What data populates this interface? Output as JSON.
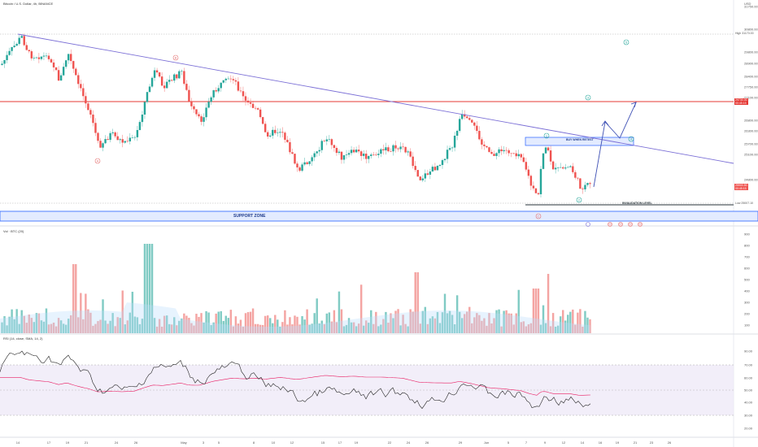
{
  "header": {
    "symbol_title": "Bitcoin / U.S. Dollar, 4h, BINANCE",
    "currency": "USD"
  },
  "price_axis": {
    "ticks": [
      "31750.00",
      "30800.00",
      "29800.00",
      "28900.00",
      "28400.00",
      "27750.00",
      "27100.00",
      "26800.00",
      "26300.00",
      "25700.00",
      "25100.00",
      "24800.00"
    ],
    "high_label": "High",
    "high_value": "31170.00",
    "low_label": "Low",
    "low_value": "25007.10",
    "current_price": "25900.50",
    "current_time": "00:45:15",
    "red_level_value": "29730.00",
    "red_level_countdown": "00:45:15"
  },
  "annotations": {
    "support_zone": "SUPPORT ZONE",
    "buy_when_retest": "BUY WHEN RETEST",
    "invalidation_level": "INVALIDATION LEVEL",
    "wave_labels": [
      {
        "id": "B",
        "text": "B",
        "color": "#e57373"
      },
      {
        "id": "A",
        "text": "A",
        "color": "#e57373"
      },
      {
        "id": "C",
        "text": "C",
        "color": "#e57373"
      },
      {
        "id": "1",
        "text": "1",
        "color": "#26a69a"
      },
      {
        "id": "2",
        "text": "2",
        "color": "#26a69a"
      },
      {
        "id": "3",
        "text": "3",
        "color": "#26a69a"
      },
      {
        "id": "4",
        "text": "4",
        "color": "#26a69a"
      },
      {
        "id": "5",
        "text": "5",
        "color": "#26a69a"
      }
    ]
  },
  "volume_panel": {
    "title": "Vol · BTC (20)",
    "ticks": [
      "900",
      "800",
      "700",
      "600",
      "500",
      "400",
      "300",
      "200",
      "100"
    ]
  },
  "rsi_panel": {
    "title": "RSI (14, close, SMA, 14, 2)",
    "ticks": [
      "90.00",
      "70.00",
      "60.00",
      "50.00",
      "40.00",
      "30.00",
      "20.00"
    ]
  },
  "time_axis": {
    "labels": [
      "14",
      "17",
      "19",
      "21",
      "24",
      "26",
      "May",
      "3",
      "5",
      "8",
      "10",
      "12",
      "15",
      "17",
      "19",
      "22",
      "24",
      "26",
      "29",
      "Jun",
      "5",
      "7",
      "9",
      "12",
      "14",
      "16",
      "19",
      "21",
      "23",
      "26"
    ]
  },
  "colors": {
    "up": "#26a69a",
    "down": "#ef5350",
    "trendline": "#7b6fd6",
    "resistance": "#e53935",
    "support_zone": "#2962ff",
    "arrow": "#3f51b5",
    "rsi_line": "#222222",
    "rsi_ma": "#e91e63"
  }
}
